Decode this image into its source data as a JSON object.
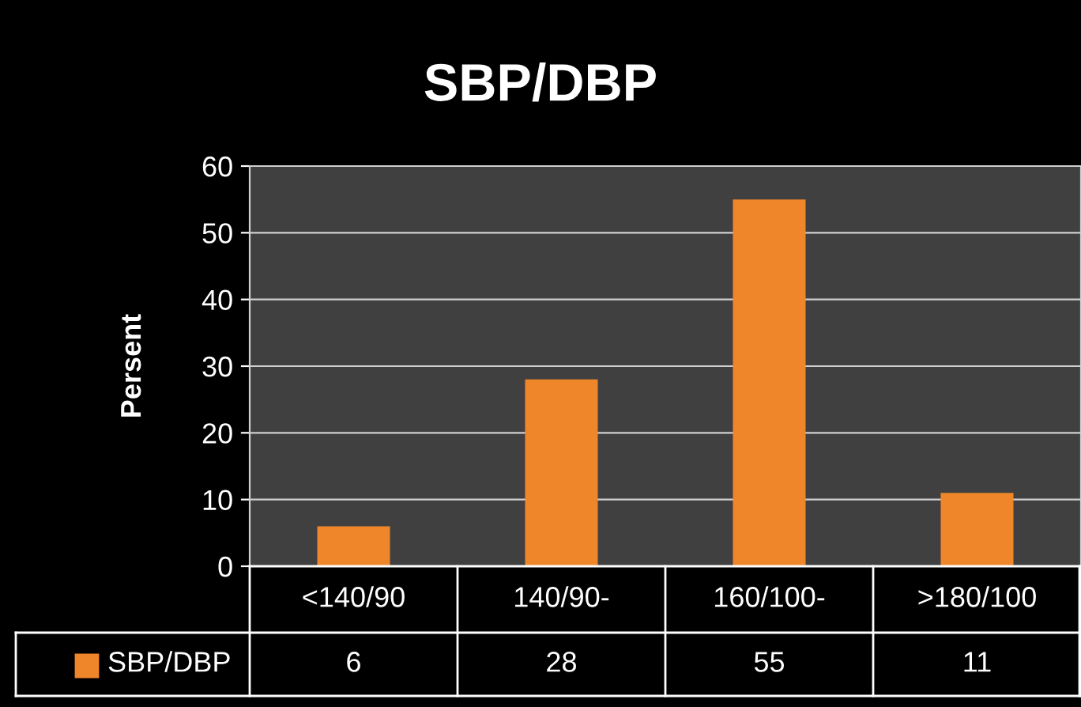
{
  "chart_data": {
    "type": "bar",
    "title": "SBP/DBP",
    "ylabel": "Persent",
    "categories": [
      "<140/90",
      "140/90-",
      "160/100-",
      ">180/100"
    ],
    "series": [
      {
        "name": "SBP/DBP",
        "color": "#f0862a",
        "values": [
          6,
          28,
          55,
          11
        ]
      }
    ],
    "ylim": [
      0,
      60
    ],
    "yticks": [
      0,
      10,
      20,
      30,
      40,
      50,
      60
    ],
    "grid": "y",
    "legend": "bottom",
    "data_labels": true
  }
}
